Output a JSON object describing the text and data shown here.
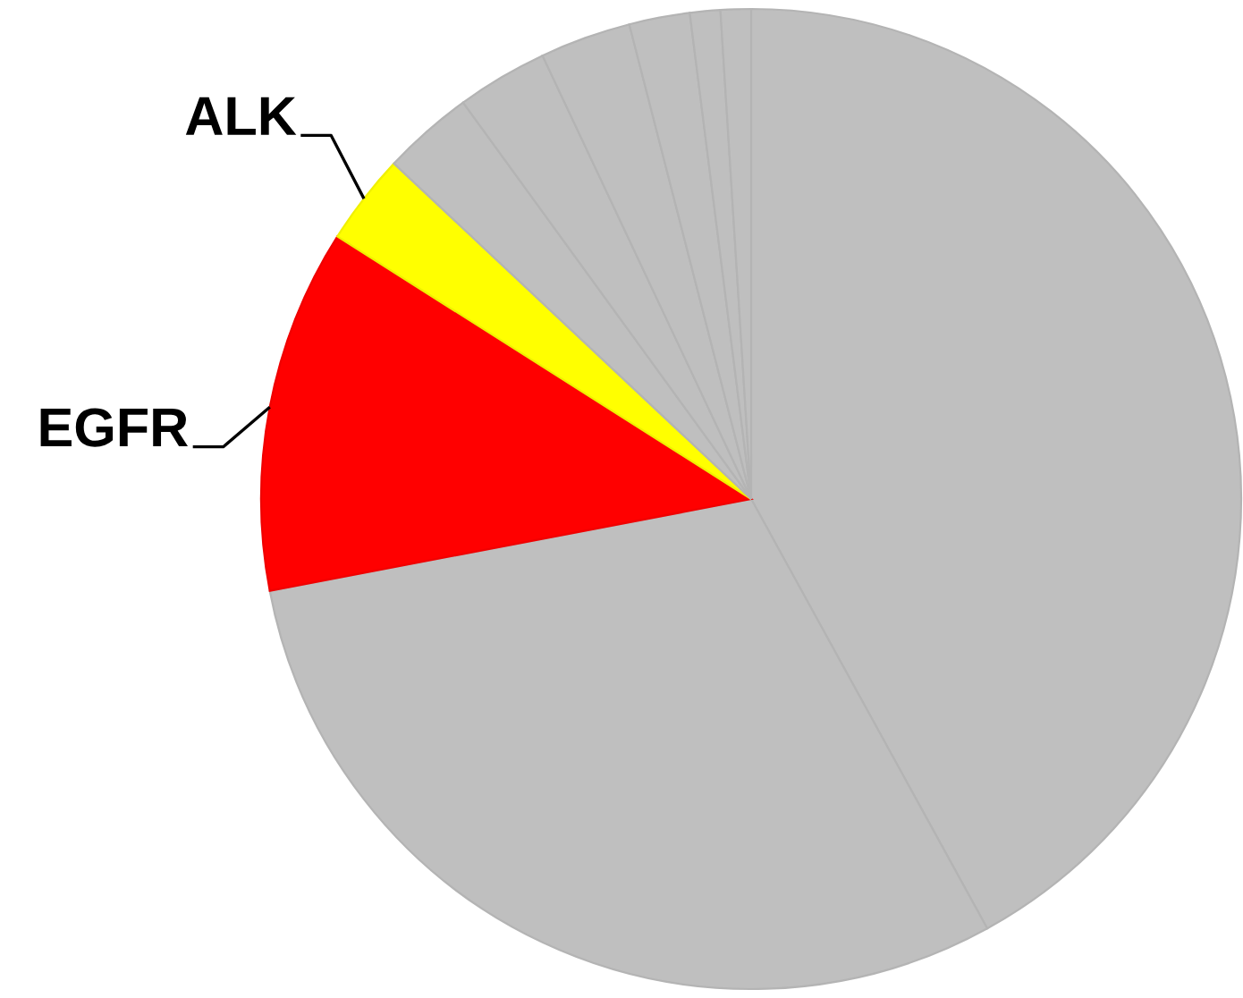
{
  "chart_data": {
    "type": "pie",
    "categories": [
      null,
      null,
      "EGFR",
      "ALK",
      null,
      null,
      null,
      null,
      null,
      null
    ],
    "values": [
      42,
      30,
      12,
      3,
      3,
      3,
      3,
      2,
      1,
      1
    ],
    "colors": [
      "#bfbfbf",
      "#bfbfbf",
      "#ff0000",
      "#ffff00",
      "#bfbfbf",
      "#bfbfbf",
      "#bfbfbf",
      "#bfbfbf",
      "#bfbfbf",
      "#bfbfbf"
    ]
  }
}
